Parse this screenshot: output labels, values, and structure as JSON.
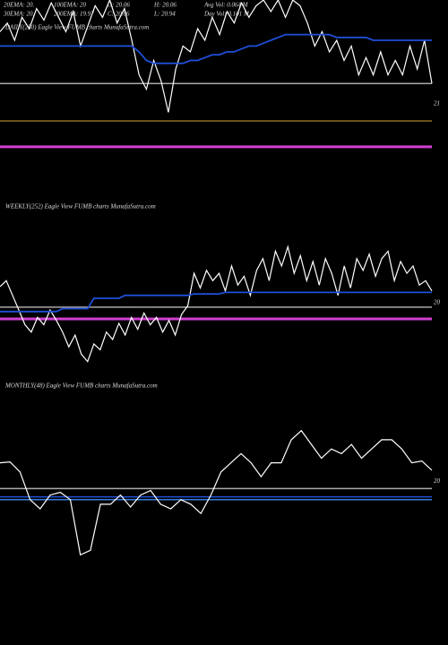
{
  "header": [
    "20EMA: 20.",
    "100EMA: 20",
    "O: 20.06",
    "H: 20.06",
    "Avg Vol: 0.064  M",
    "30EMA: 20.",
    "200EMA: 19.97",
    "C: 20.06",
    "L: 20.94",
    "Day Vol: 0.101 M"
  ],
  "chart_data": [
    {
      "type": "line",
      "title": "DAILY(250) Eagle  View  FUMB charts MunafaSutra.com",
      "ylim": [
        20.8,
        21.36
      ],
      "yticks": [
        21
      ],
      "series": [
        {
          "color": "#ffffff",
          "values": [
            21.25,
            21.28,
            21.22,
            21.3,
            21.26,
            21.33,
            21.29,
            21.35,
            21.3,
            21.25,
            21.32,
            21.2,
            21.27,
            21.34,
            21.3,
            21.36,
            21.28,
            21.33,
            21.22,
            21.1,
            21.05,
            21.15,
            21.08,
            20.97,
            21.12,
            21.2,
            21.18,
            21.26,
            21.22,
            21.3,
            21.24,
            21.32,
            21.28,
            21.35,
            21.3,
            21.34,
            21.36,
            21.32,
            21.36,
            21.3,
            21.36,
            21.34,
            21.28,
            21.2,
            21.25,
            21.18,
            21.22,
            21.15,
            21.2,
            21.1,
            21.16,
            21.1,
            21.18,
            21.1,
            21.15,
            21.1,
            21.2,
            21.12,
            21.22,
            21.07
          ]
        },
        {
          "color": "#1f4fd8",
          "values": [
            21.2,
            21.2,
            21.2,
            21.2,
            21.2,
            21.2,
            21.2,
            21.2,
            21.2,
            21.2,
            21.2,
            21.2,
            21.2,
            21.2,
            21.2,
            21.2,
            21.2,
            21.2,
            21.2,
            21.18,
            21.15,
            21.14,
            21.14,
            21.14,
            21.14,
            21.14,
            21.15,
            21.15,
            21.16,
            21.17,
            21.17,
            21.18,
            21.18,
            21.19,
            21.2,
            21.2,
            21.21,
            21.22,
            21.23,
            21.24,
            21.24,
            21.24,
            21.24,
            21.24,
            21.24,
            21.24,
            21.23,
            21.23,
            21.23,
            21.23,
            21.23,
            21.22,
            21.22,
            21.22,
            21.22,
            21.22,
            21.22,
            21.22,
            21.22,
            21.22
          ]
        }
      ],
      "hlines": [
        {
          "value": 21.07,
          "color": "#aaaaaa"
        },
        {
          "value": 20.94,
          "color": "#8a6d1a"
        },
        {
          "value": 20.85,
          "color": "#d040d0"
        }
      ]
    },
    {
      "type": "line",
      "title": "WEEKLY(252) Eagle  View  FUMB charts MunafaSutra.com",
      "ylim": [
        19.5,
        20.84
      ],
      "yticks": [
        20
      ],
      "series": [
        {
          "color": "#ffffff",
          "values": [
            20.11,
            20.15,
            20.05,
            19.95,
            19.85,
            19.8,
            19.9,
            19.85,
            19.95,
            19.88,
            19.8,
            19.7,
            19.78,
            19.65,
            19.6,
            19.72,
            19.68,
            19.8,
            19.75,
            19.86,
            19.78,
            19.9,
            19.82,
            19.93,
            19.85,
            19.9,
            19.8,
            19.88,
            19.78,
            19.92,
            19.98,
            20.2,
            20.1,
            20.22,
            20.15,
            20.2,
            20.08,
            20.25,
            20.12,
            20.18,
            20.05,
            20.22,
            20.3,
            20.15,
            20.35,
            20.25,
            20.38,
            20.2,
            20.32,
            20.15,
            20.28,
            20.12,
            20.3,
            20.2,
            20.05,
            20.25,
            20.1,
            20.3,
            20.22,
            20.33,
            20.18,
            20.3,
            20.35,
            20.15,
            20.28,
            20.2,
            20.25,
            20.12,
            20.15,
            20.08
          ]
        },
        {
          "color": "#1f4fd8",
          "values": [
            19.94,
            19.94,
            19.94,
            19.94,
            19.94,
            19.94,
            19.94,
            19.94,
            19.94,
            19.94,
            19.96,
            19.96,
            19.96,
            19.96,
            19.96,
            20.03,
            20.03,
            20.03,
            20.03,
            20.03,
            20.05,
            20.05,
            20.05,
            20.05,
            20.05,
            20.05,
            20.05,
            20.05,
            20.05,
            20.05,
            20.05,
            20.06,
            20.06,
            20.06,
            20.06,
            20.06,
            20.07,
            20.07,
            20.07,
            20.07,
            20.07,
            20.07,
            20.07,
            20.07,
            20.07,
            20.07,
            20.07,
            20.07,
            20.07,
            20.07,
            20.07,
            20.07,
            20.07,
            20.07,
            20.07,
            20.07,
            20.07,
            20.07,
            20.07,
            20.07,
            20.07,
            20.07,
            20.07,
            20.07,
            20.07,
            20.07,
            20.07,
            20.07,
            20.07,
            20.07
          ]
        }
      ],
      "hlines": [
        {
          "value": 19.97,
          "color": "#aaaaaa"
        },
        {
          "value": 19.89,
          "color": "#d040d0"
        }
      ]
    },
    {
      "type": "line",
      "title": "MONTHLY(48) Eagle  View  FUMB charts MunafaSutra.com",
      "ylim": [
        19.0,
        21.14
      ],
      "yticks": [
        20
      ],
      "series": [
        {
          "color": "#ffffff",
          "values": [
            20.2,
            20.21,
            20.1,
            19.8,
            19.7,
            19.85,
            19.88,
            19.8,
            19.2,
            19.25,
            19.75,
            19.75,
            19.85,
            19.72,
            19.85,
            19.9,
            19.75,
            19.7,
            19.8,
            19.75,
            19.65,
            19.85,
            20.1,
            20.2,
            20.3,
            20.2,
            20.05,
            20.2,
            20.2,
            20.45,
            20.55,
            20.4,
            20.25,
            20.35,
            20.3,
            20.4,
            20.25,
            20.35,
            20.45,
            20.45,
            20.35,
            20.2,
            20.22,
            20.12
          ]
        }
      ],
      "hlines": [
        {
          "value": 19.92,
          "color": "#aaaaaa"
        },
        {
          "value": 19.83,
          "color": "#1f4fd8"
        },
        {
          "value": 19.8,
          "color": "#3a7ad8"
        }
      ]
    }
  ]
}
